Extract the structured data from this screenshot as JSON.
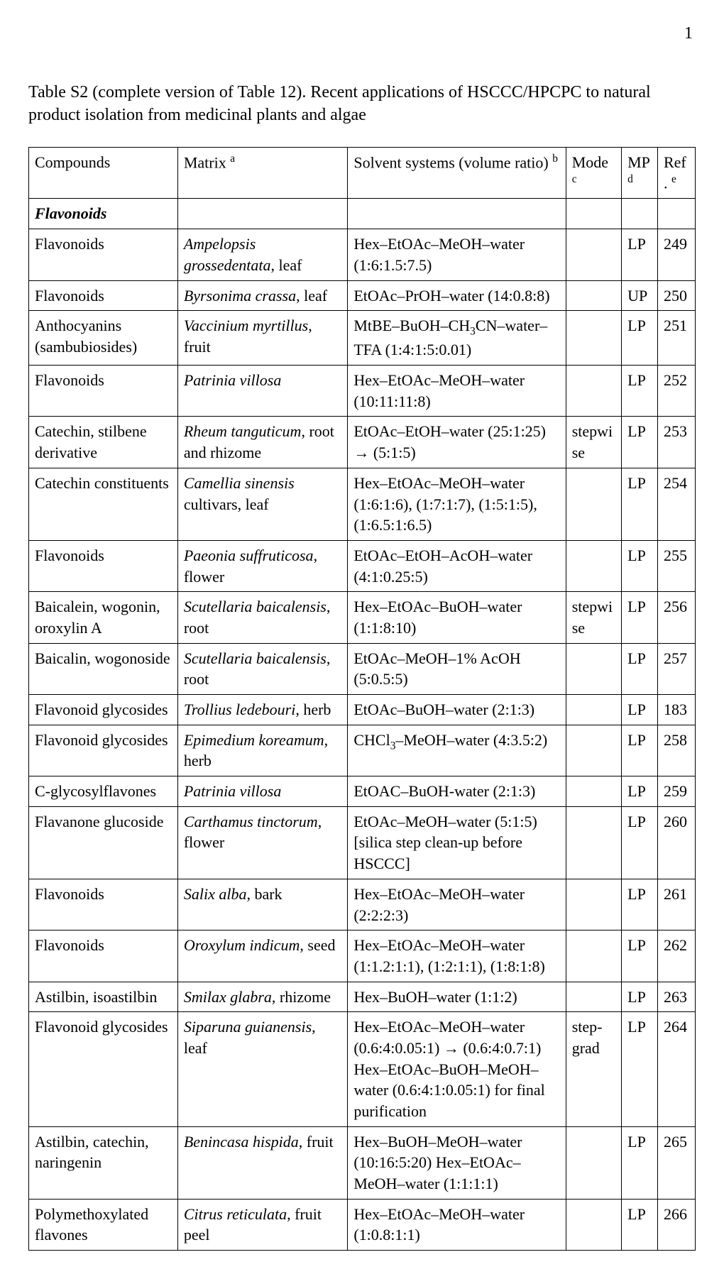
{
  "page_number": "1",
  "caption": "Table S2 (complete version of Table 12). Recent applications of HSCCC/HPCPC to natural product isolation from medicinal plants and algae",
  "headers": {
    "compounds": "Compounds",
    "matrix": "Matrix",
    "matrix_sup": "a",
    "solvent": "Solvent systems (volume ratio)",
    "solvent_sup": "b",
    "mode": "Mode",
    "mode_sup": "c",
    "mp": "MP",
    "mp_sup": "d",
    "ref": "Ref.",
    "ref_sup": "e"
  },
  "section_label": "Flavonoids",
  "rows": [
    {
      "compound": "Flavonoids",
      "matrix_ital": "Ampelopsis grossedentata",
      "matrix_rest": ", leaf",
      "solvent": "Hex–EtOAc–MeOH–water (1:6:1.5:7.5)",
      "mode": "",
      "mp": "LP",
      "ref": "249"
    },
    {
      "compound": "Flavonoids",
      "matrix_ital": "Byrsonima crassa",
      "matrix_rest": ", leaf",
      "solvent": "EtOAc–PrOH–water (14:0.8:8)",
      "mode": "",
      "mp": "UP",
      "ref": "250"
    },
    {
      "compound": "Anthocyanins (sambubiosides)",
      "matrix_ital": "Vaccinium myrtillus",
      "matrix_rest": ", fruit",
      "solvent_pre": "MtBE–BuOH–CH",
      "solvent_sub": "3",
      "solvent_post": "CN–water–TFA (1:4:1:5:0.01)",
      "mode": "",
      "mp": "LP",
      "ref": "251"
    },
    {
      "compound": "Flavonoids",
      "matrix_ital": "Patrinia villosa",
      "matrix_rest": "",
      "solvent": "Hex–EtOAc–MeOH–water (10:11:11:8)",
      "mode": "",
      "mp": "LP",
      "ref": "252"
    },
    {
      "compound": "Catechin, stilbene derivative",
      "matrix_ital": "Rheum tanguticum",
      "matrix_rest": ", root and rhizome",
      "solvent": "EtOAc–EtOH–water (25:1:25) → (5:1:5)",
      "mode": "stepwise",
      "mp": "LP",
      "ref": "253"
    },
    {
      "compound": "Catechin constituents",
      "matrix_ital": "Camellia sinensis",
      "matrix_rest": " cultivars, leaf",
      "solvent": "Hex–EtOAc–MeOH–water (1:6:1:6), (1:7:1:7), (1:5:1:5), (1:6.5:1:6.5)",
      "mode": "",
      "mp": "LP",
      "ref": "254"
    },
    {
      "compound": "Flavonoids",
      "matrix_ital": "Paeonia suffruticosa",
      "matrix_rest": ", flower",
      "solvent": "EtOAc–EtOH–AcOH–water (4:1:0.25:5)",
      "mode": "",
      "mp": "LP",
      "ref": "255"
    },
    {
      "compound": "Baicalein, wogonin, oroxylin A",
      "matrix_ital": "Scutellaria baicalensis",
      "matrix_rest": ", root",
      "solvent": "Hex–EtOAc–BuOH–water (1:1:8:10)",
      "mode": "stepwise",
      "mp": "LP",
      "ref": "256"
    },
    {
      "compound": "Baicalin, wogonoside",
      "matrix_ital": "Scutellaria baicalensis",
      "matrix_rest": ", root",
      "solvent": "EtOAc–MeOH–1% AcOH (5:0.5:5)",
      "mode": "",
      "mp": "LP",
      "ref": "257"
    },
    {
      "compound": "Flavonoid glycosides",
      "matrix_ital": "Trollius ledebouri",
      "matrix_rest": ", herb",
      "solvent": "EtOAc–BuOH–water (2:1:3)",
      "mode": "",
      "mp": "LP",
      "ref": "183"
    },
    {
      "compound": "Flavonoid glycosides",
      "matrix_ital": "Epimedium koreamum",
      "matrix_rest": ", herb",
      "solvent_pre": "CHCl",
      "solvent_sub": "3",
      "solvent_post": "–MeOH–water (4:3.5:2)",
      "mode": "",
      "mp": "LP",
      "ref": "258"
    },
    {
      "compound": "C-glycosylflavones",
      "matrix_ital": "Patrinia villosa",
      "matrix_rest": "",
      "solvent": "EtOAC–BuOH-water (2:1:3)",
      "mode": "",
      "mp": "LP",
      "ref": "259"
    },
    {
      "compound": "Flavanone glucoside",
      "matrix_ital": "Carthamus tinctorum",
      "matrix_rest": ", flower",
      "solvent": "EtOAc–MeOH–water (5:1:5) [silica step clean-up before HSCCC]",
      "mode": "",
      "mp": "LP",
      "ref": "260"
    },
    {
      "compound": "Flavonoids",
      "matrix_ital": "Salix alba",
      "matrix_rest": ", bark",
      "solvent": "Hex–EtOAc–MeOH–water (2:2:2:3)",
      "mode": "",
      "mp": "LP",
      "ref": "261"
    },
    {
      "compound": "Flavonoids",
      "matrix_ital": "Oroxylum indicum",
      "matrix_rest": ", seed",
      "solvent": "Hex–EtOAc–MeOH–water (1:1.2:1:1), (1:2:1:1), (1:8:1:8)",
      "mode": "",
      "mp": "LP",
      "ref": "262"
    },
    {
      "compound": "Astilbin, isoastilbin",
      "matrix_ital": "Smilax glabra",
      "matrix_rest": ", rhizome",
      "solvent": "Hex–BuOH–water (1:1:2)",
      "mode": "",
      "mp": "LP",
      "ref": "263"
    },
    {
      "compound": "Flavonoid glycosides",
      "matrix_ital": "Siparuna guianensis",
      "matrix_rest": ", leaf",
      "solvent": "Hex–EtOAc–MeOH–water (0.6:4:0.05:1) → (0.6:4:0.7:1) Hex–EtOAc–BuOH–MeOH–water (0.6:4:1:0.05:1) for final purification",
      "mode": "step-grad",
      "mp": "LP",
      "ref": "264"
    },
    {
      "compound": "Astilbin, catechin, naringenin",
      "matrix_ital": "Benincasa hispida",
      "matrix_rest": ", fruit",
      "solvent": "Hex–BuOH–MeOH–water (10:16:5:20) Hex–EtOAc–MeOH–water (1:1:1:1)",
      "mode": "",
      "mp": "LP",
      "ref": "265"
    },
    {
      "compound": "Polymethoxylated flavones",
      "matrix_ital": "Citrus reticulata",
      "matrix_rest": ", fruit peel",
      "solvent": "Hex–EtOAc–MeOH–water (1:0.8:1:1)",
      "mode": "",
      "mp": "LP",
      "ref": "266"
    }
  ]
}
